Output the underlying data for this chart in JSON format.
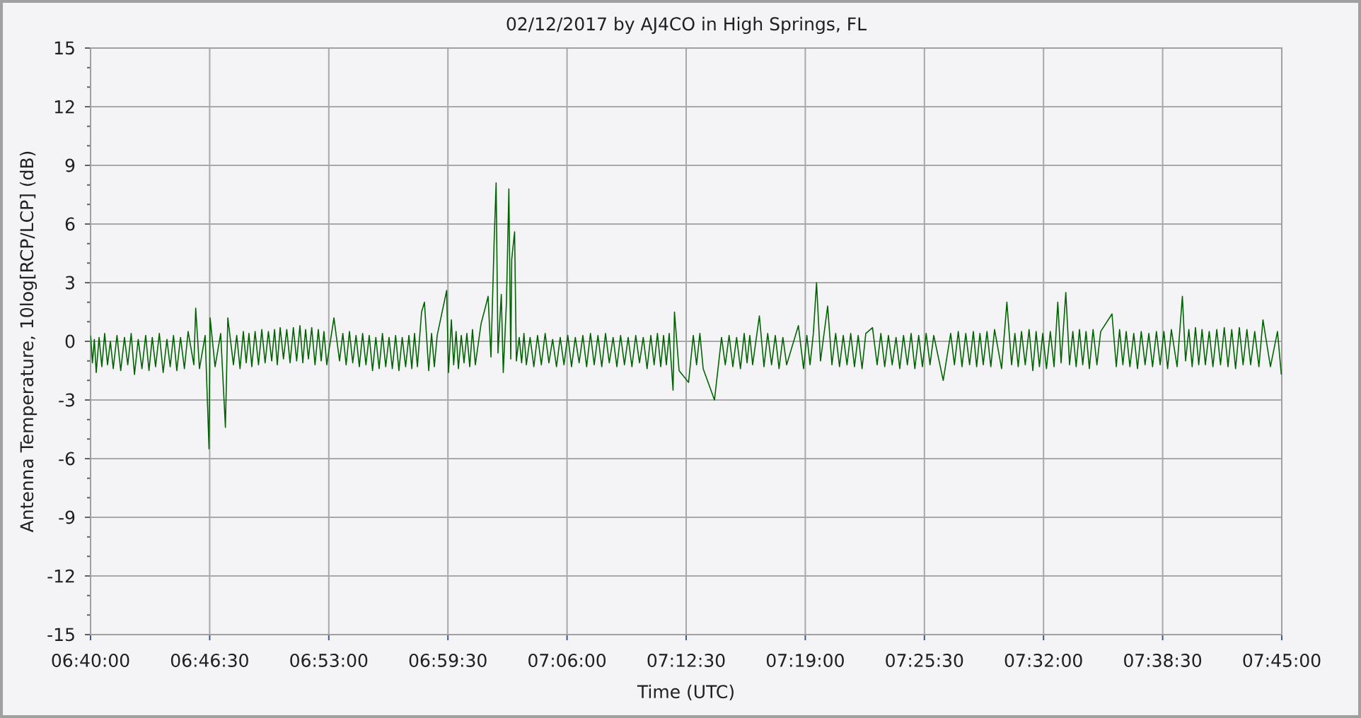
{
  "chart_data": {
    "type": "line",
    "title": "02/12/2017 by AJ4CO in High Springs, FL",
    "xlabel": "Time (UTC)",
    "ylabel": "Antenna Temperature, 10log[RCP/LCP] (dB)",
    "xlim": [
      6.666667,
      7.75
    ],
    "xticks": [
      {
        "value": 6.666667,
        "label": "06:40:00"
      },
      {
        "value": 6.775,
        "label": "06:46:30"
      },
      {
        "value": 6.883333,
        "label": "06:53:00"
      },
      {
        "value": 6.991667,
        "label": "06:59:30"
      },
      {
        "value": 7.1,
        "label": "07:06:00"
      },
      {
        "value": 7.208333,
        "label": "07:12:30"
      },
      {
        "value": 7.316667,
        "label": "07:19:00"
      },
      {
        "value": 7.425,
        "label": "07:25:30"
      },
      {
        "value": 7.533333,
        "label": "07:32:00"
      },
      {
        "value": 7.641667,
        "label": "07:38:30"
      },
      {
        "value": 7.75,
        "label": "07:45:00"
      }
    ],
    "ylim": [
      -15,
      15
    ],
    "yticks": [
      -15,
      -12,
      -9,
      -6,
      -3,
      0,
      3,
      6,
      9,
      12,
      15
    ],
    "grid": true,
    "color": "#006400",
    "x": [
      6.6667,
      6.6684,
      6.6701,
      6.6718,
      6.6744,
      6.6769,
      6.6795,
      6.6821,
      6.6847,
      6.6873,
      6.6907,
      6.6941,
      6.6975,
      6.7005,
      6.7036,
      6.7066,
      6.71,
      6.7134,
      6.7168,
      6.7198,
      6.7228,
      6.7258,
      6.7292,
      6.7327,
      6.7361,
      6.7391,
      6.7421,
      6.7451,
      6.7485,
      6.752,
      6.7554,
      6.7606,
      6.7623,
      6.7657,
      6.7709,
      6.7744,
      6.7754,
      6.7799,
      6.785,
      6.7893,
      6.7915,
      6.7966,
      6.7996,
      6.8026,
      6.8056,
      6.8082,
      6.8107,
      6.8133,
      6.8163,
      6.8194,
      6.8224,
      6.8254,
      6.8284,
      6.8314,
      6.834,
      6.8365,
      6.8391,
      6.8421,
      6.8451,
      6.8481,
      6.8511,
      6.8541,
      6.8571,
      6.8597,
      6.8622,
      6.8648,
      6.8678,
      6.8708,
      6.8738,
      6.8764,
      6.8789,
      6.8815,
      6.888,
      6.8931,
      6.8961,
      6.8991,
      6.9021,
      6.9051,
      6.9081,
      6.9111,
      6.9141,
      6.9171,
      6.9201,
      6.9231,
      6.9261,
      6.9291,
      6.9321,
      6.9351,
      6.9381,
      6.9411,
      6.9441,
      6.9471,
      6.9501,
      6.9532,
      6.9562,
      6.9588,
      6.9613,
      6.9639,
      6.9677,
      6.9703,
      6.9742,
      6.9768,
      6.9793,
      6.9819,
      6.9905,
      6.9922,
      6.9948,
      6.9969,
      6.9991,
      7.0012,
      7.0038,
      7.0063,
      7.0089,
      7.0115,
      7.014,
      7.0166,
      7.0218,
      7.026,
      7.0282,
      7.0308,
      7.0337,
      7.0355,
      7.0372,
      7.0402,
      7.042,
      7.0449,
      7.0471,
      7.0488,
      7.0497,
      7.0523,
      7.0539,
      7.0565,
      7.0587,
      7.0608,
      7.063,
      7.0664,
      7.0698,
      7.0732,
      7.0766,
      7.0801,
      7.0835,
      7.0869,
      7.0904,
      7.0938,
      7.0972,
      7.1007,
      7.1041,
      7.1075,
      7.111,
      7.1144,
      7.1178,
      7.1213,
      7.1247,
      7.1281,
      7.1316,
      7.135,
      7.1384,
      7.1419,
      7.1453,
      7.1487,
      7.1522,
      7.1556,
      7.159,
      7.1625,
      7.1659,
      7.1693,
      7.1728,
      7.1762,
      7.1792,
      7.1822,
      7.1852,
      7.1878,
      7.1903,
      7.1929,
      7.1964,
      7.1977,
      7.2019,
      7.2105,
      7.2148,
      7.2178,
      7.2208,
      7.2238,
      7.2341,
      7.2405,
      7.2439,
      7.2474,
      7.2508,
      7.2542,
      7.2577,
      7.2611,
      7.2637,
      7.2662,
      7.2688,
      7.2749,
      7.2791,
      7.2825,
      7.286,
      7.2894,
      7.2928,
      7.2963,
      7.2997,
      7.3104,
      7.3151,
      7.3181,
      7.321,
      7.324,
      7.3269,
      7.3305,
      7.337,
      7.3409,
      7.3443,
      7.3478,
      7.3512,
      7.3546,
      7.358,
      7.3614,
      7.3648,
      7.3683,
      7.3717,
      7.3778,
      7.382,
      7.3854,
      7.3889,
      7.3923,
      7.3957,
      7.3992,
      7.4026,
      7.406,
      7.4095,
      7.4129,
      7.4163,
      7.4198,
      7.4232,
      7.4266,
      7.4301,
      7.4335,
      7.4421,
      7.4489,
      7.4523,
      7.4558,
      7.4592,
      7.4626,
      7.4661,
      7.4695,
      7.4725,
      7.4755,
      7.4785,
      7.4819,
      7.4854,
      7.4888,
      7.4952,
      7.5,
      7.5043,
      7.5073,
      7.5103,
      7.5133,
      7.5167,
      7.5202,
      7.5236,
      7.5266,
      7.5296,
      7.5326,
      7.536,
      7.5395,
      7.5429,
      7.5463,
      7.5493,
      7.5536,
      7.557,
      7.56,
      7.563,
      7.566,
      7.569,
      7.572,
      7.575,
      7.5784,
      7.5819,
      7.5853,
      7.5956,
      7.5995,
      7.6025,
      7.6055,
      7.6085,
      7.6119,
      7.6154,
      7.6188,
      7.6222,
      7.6257,
      7.6291,
      7.6325,
      7.636,
      7.6394,
      7.6428,
      7.6462,
      7.6496,
      7.6548,
      7.6596,
      7.6625,
      7.6655,
      7.6685,
      7.6715,
      7.6745,
      7.6775,
      7.6805,
      7.684,
      7.6874,
      7.6909,
      7.6943,
      7.6977,
      7.7011,
      7.7045,
      7.708,
      7.7114,
      7.7148,
      7.7183,
      7.7217,
      7.7254,
      7.7292,
      7.7329,
      7.7397,
      7.7461,
      7.7496
    ],
    "values": [
      0.3,
      -1.1,
      0.1,
      -1.6,
      0.2,
      -1.3,
      0.4,
      -1.2,
      0.0,
      -1.4,
      0.3,
      -1.5,
      0.2,
      -1.2,
      0.4,
      -1.7,
      0.1,
      -1.4,
      0.3,
      -1.5,
      0.2,
      -1.3,
      0.4,
      -1.6,
      0.1,
      -1.3,
      0.3,
      -1.5,
      0.2,
      -1.4,
      0.5,
      -1.2,
      1.7,
      -1.4,
      0.3,
      -5.5,
      1.2,
      -1.3,
      0.4,
      -4.4,
      1.2,
      -1.2,
      0.3,
      -1.4,
      0.5,
      -1.1,
      0.4,
      -1.3,
      0.5,
      -1.2,
      0.6,
      -1.1,
      0.5,
      -1.0,
      0.6,
      -1.2,
      0.7,
      -0.9,
      0.6,
      -1.1,
      0.7,
      -1.0,
      0.8,
      -1.1,
      0.6,
      -0.9,
      0.7,
      -1.2,
      0.6,
      -1.0,
      0.5,
      -1.2,
      1.2,
      -1.0,
      0.4,
      -1.2,
      0.5,
      -1.1,
      0.3,
      -1.3,
      0.4,
      -1.2,
      0.3,
      -1.5,
      0.2,
      -1.4,
      0.4,
      -1.3,
      0.2,
      -1.4,
      0.3,
      -1.5,
      0.2,
      -1.3,
      0.3,
      -1.4,
      0.4,
      -1.3,
      1.5,
      2.0,
      -1.5,
      0.4,
      -1.3,
      0.3,
      2.6,
      -1.6,
      1.1,
      -1.2,
      0.5,
      -1.4,
      0.3,
      -1.1,
      0.4,
      -1.3,
      0.6,
      -1.2,
      0.9,
      1.8,
      2.3,
      -0.8,
      5.1,
      8.1,
      -0.6,
      2.4,
      -1.6,
      2.0,
      7.8,
      -0.9,
      4.2,
      5.6,
      -1.0,
      0.2,
      -1.1,
      0.4,
      -1.2,
      0.2,
      -1.3,
      0.3,
      -1.2,
      0.4,
      -1.1,
      0.1,
      -1.3,
      0.2,
      -1.2,
      0.3,
      -1.3,
      0.2,
      -1.1,
      0.3,
      -1.3,
      0.4,
      -1.2,
      0.3,
      -1.3,
      0.4,
      -1.1,
      0.2,
      -1.3,
      0.3,
      -1.2,
      0.2,
      -1.3,
      0.3,
      -1.1,
      0.2,
      -1.4,
      0.3,
      -1.2,
      0.4,
      -1.3,
      0.3,
      -1.2,
      0.4,
      -2.5,
      1.5,
      -1.5,
      -2.1,
      0.3,
      -1.2,
      0.4,
      -1.4,
      -3.0,
      0.2,
      -1.2,
      0.3,
      -1.3,
      0.2,
      -1.4,
      0.4,
      -1.1,
      0.3,
      -1.2,
      1.3,
      -1.3,
      0.4,
      -1.2,
      0.3,
      -1.4,
      0.2,
      -1.2,
      0.8,
      -1.4,
      0.3,
      -1.2,
      0.4,
      3.0,
      -1.0,
      1.8,
      -1.2,
      0.4,
      -1.3,
      0.3,
      -1.2,
      0.4,
      -1.3,
      0.3,
      -1.4,
      0.4,
      0.7,
      -1.2,
      0.4,
      -1.3,
      0.3,
      -1.2,
      0.2,
      -1.4,
      0.3,
      -1.2,
      0.4,
      -1.4,
      0.3,
      -1.3,
      0.4,
      -1.2,
      0.3,
      -2.0,
      0.4,
      -1.2,
      0.5,
      -1.3,
      0.4,
      -1.2,
      0.5,
      -1.3,
      0.4,
      -1.2,
      0.5,
      -1.3,
      0.6,
      -1.4,
      2.0,
      -1.2,
      0.4,
      -1.3,
      0.5,
      -1.2,
      0.6,
      -1.5,
      0.5,
      -1.3,
      0.4,
      -1.4,
      0.5,
      -1.3,
      2.0,
      -1.1,
      2.5,
      -1.2,
      0.5,
      -1.3,
      0.6,
      -1.2,
      0.5,
      -1.4,
      0.6,
      -1.2,
      0.5,
      1.4,
      -1.3,
      0.6,
      -1.2,
      0.5,
      -1.3,
      0.4,
      -1.4,
      0.5,
      -1.2,
      0.4,
      -1.3,
      0.5,
      -1.2,
      0.5,
      -1.4,
      0.6,
      -1.3,
      2.3,
      -1.0,
      0.6,
      -1.3,
      0.7,
      -1.2,
      0.6,
      -1.2,
      0.5,
      -1.3,
      0.6,
      -1.2,
      0.7,
      -1.3,
      0.6,
      -1.4,
      0.7,
      -1.2,
      0.6,
      -1.2,
      0.5,
      -1.3,
      1.1,
      -1.3,
      0.5,
      -1.7
    ]
  }
}
